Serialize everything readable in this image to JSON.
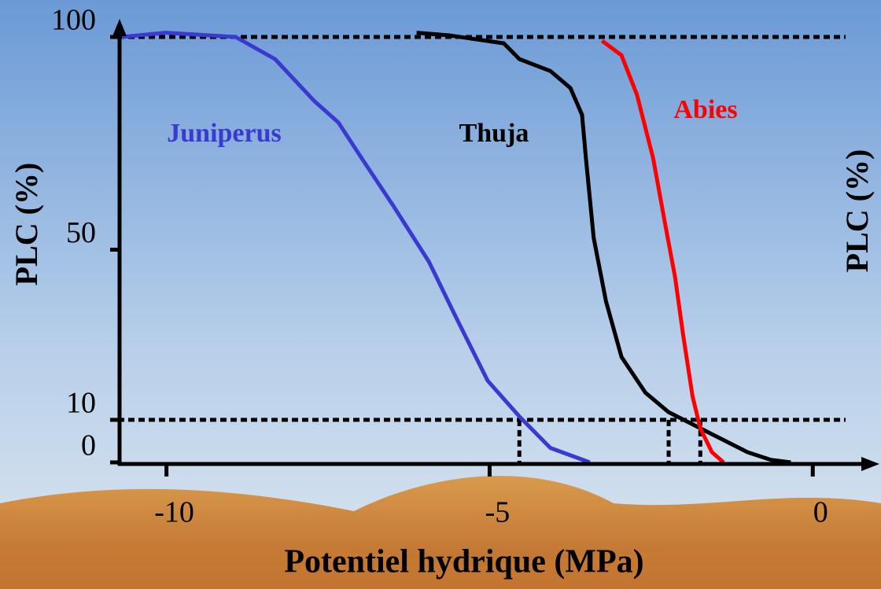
{
  "chart_data": {
    "type": "line",
    "xlabel": "Potentiel hydrique (MPa)",
    "ylabel": "PLC (%)",
    "xlim": [
      -10.75,
      0.8
    ],
    "xticks": [
      -10,
      -5,
      0
    ],
    "ylim": [
      0,
      100
    ],
    "yticks": [
      0,
      10,
      50,
      100
    ],
    "reference_y": [
      100,
      10
    ],
    "reference_x": [
      -4.54,
      -2.23,
      -1.74
    ],
    "series": [
      {
        "name": "Juniperus",
        "color": "#3a3ad0",
        "x": [
          -10.69,
          -10.02,
          -8.93,
          -8.32,
          -7.71,
          -7.34,
          -6.98,
          -6.49,
          -5.94,
          -5.52,
          -5.03,
          -4.54,
          -4.06,
          -3.45
        ],
        "values": [
          100,
          101,
          100,
          94.8,
          84.9,
          79.9,
          71.5,
          60.3,
          47.2,
          34.1,
          19.2,
          10.8,
          3.4,
          0
        ]
      },
      {
        "name": "Thuja",
        "color": "#000000",
        "x": [
          -6.13,
          -5.64,
          -4.78,
          -4.54,
          -4.06,
          -3.75,
          -3.57,
          -3.51,
          -3.39,
          -3.2,
          -2.96,
          -2.59,
          -2.23,
          -1.62,
          -1.01,
          -0.65,
          -0.34
        ],
        "values": [
          101,
          100.4,
          98.5,
          94.8,
          92,
          88,
          81.7,
          71.5,
          52.8,
          37.9,
          24.8,
          16.4,
          11.8,
          7.1,
          2.4,
          0.6,
          0
        ]
      },
      {
        "name": "Abies",
        "color": "#ff0000",
        "x": [
          -3.26,
          -2.96,
          -2.72,
          -2.47,
          -2.29,
          -2.13,
          -2.01,
          -1.86,
          -1.74,
          -1.56,
          -1.38
        ],
        "values": [
          99.1,
          95.7,
          86.4,
          71.5,
          56.5,
          43.5,
          30.4,
          15.5,
          8,
          2.4,
          0
        ]
      }
    ]
  }
}
